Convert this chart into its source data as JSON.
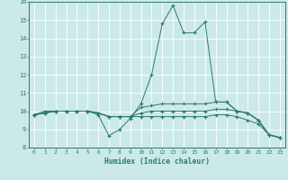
{
  "xlabel": "Humidex (Indice chaleur)",
  "ylabel": "",
  "xlim": [
    -0.5,
    23.5
  ],
  "ylim": [
    8,
    16
  ],
  "yticks": [
    8,
    9,
    10,
    11,
    12,
    13,
    14,
    15,
    16
  ],
  "xticks": [
    0,
    1,
    2,
    3,
    4,
    5,
    6,
    7,
    8,
    9,
    10,
    11,
    12,
    13,
    14,
    15,
    16,
    17,
    18,
    19,
    20,
    21,
    22,
    23
  ],
  "bg_color": "#cce9e9",
  "line_color": "#2a7a6f",
  "grid_color": "#ffffff",
  "lines": [
    {
      "x": [
        0,
        1,
        2,
        3,
        4,
        5,
        6,
        7,
        8,
        9,
        10,
        11,
        12,
        13,
        14,
        15,
        16,
        17,
        18,
        19,
        20,
        21,
        22,
        23
      ],
      "y": [
        9.8,
        10.0,
        10.0,
        10.0,
        10.0,
        10.0,
        9.8,
        8.65,
        9.0,
        9.6,
        10.4,
        12.0,
        14.8,
        15.8,
        14.3,
        14.3,
        14.9,
        10.5,
        10.5,
        10.0,
        9.9,
        9.5,
        8.7,
        8.55
      ]
    },
    {
      "x": [
        0,
        1,
        2,
        3,
        4,
        5,
        6,
        7,
        8,
        9,
        10,
        11,
        12,
        13,
        14,
        15,
        16,
        17,
        18,
        19,
        20,
        21,
        22,
        23
      ],
      "y": [
        9.8,
        9.9,
        10.0,
        10.0,
        10.0,
        10.0,
        9.9,
        9.7,
        9.7,
        9.7,
        10.2,
        10.3,
        10.4,
        10.4,
        10.4,
        10.4,
        10.4,
        10.5,
        10.5,
        10.0,
        9.9,
        9.5,
        8.7,
        8.55
      ]
    },
    {
      "x": [
        0,
        1,
        2,
        3,
        4,
        5,
        6,
        7,
        8,
        9,
        10,
        11,
        12,
        13,
        14,
        15,
        16,
        17,
        18,
        19,
        20,
        21,
        22,
        23
      ],
      "y": [
        9.8,
        9.9,
        10.0,
        10.0,
        10.0,
        10.0,
        9.9,
        9.7,
        9.7,
        9.7,
        9.9,
        10.0,
        10.0,
        10.0,
        10.0,
        10.0,
        10.0,
        10.1,
        10.1,
        10.0,
        9.9,
        9.5,
        8.7,
        8.55
      ]
    },
    {
      "x": [
        0,
        1,
        2,
        3,
        4,
        5,
        6,
        7,
        8,
        9,
        10,
        11,
        12,
        13,
        14,
        15,
        16,
        17,
        18,
        19,
        20,
        21,
        22,
        23
      ],
      "y": [
        9.8,
        9.9,
        10.0,
        10.0,
        10.0,
        10.0,
        9.9,
        9.7,
        9.7,
        9.7,
        9.7,
        9.7,
        9.7,
        9.7,
        9.7,
        9.7,
        9.7,
        9.8,
        9.8,
        9.7,
        9.5,
        9.3,
        8.7,
        8.55
      ]
    }
  ]
}
